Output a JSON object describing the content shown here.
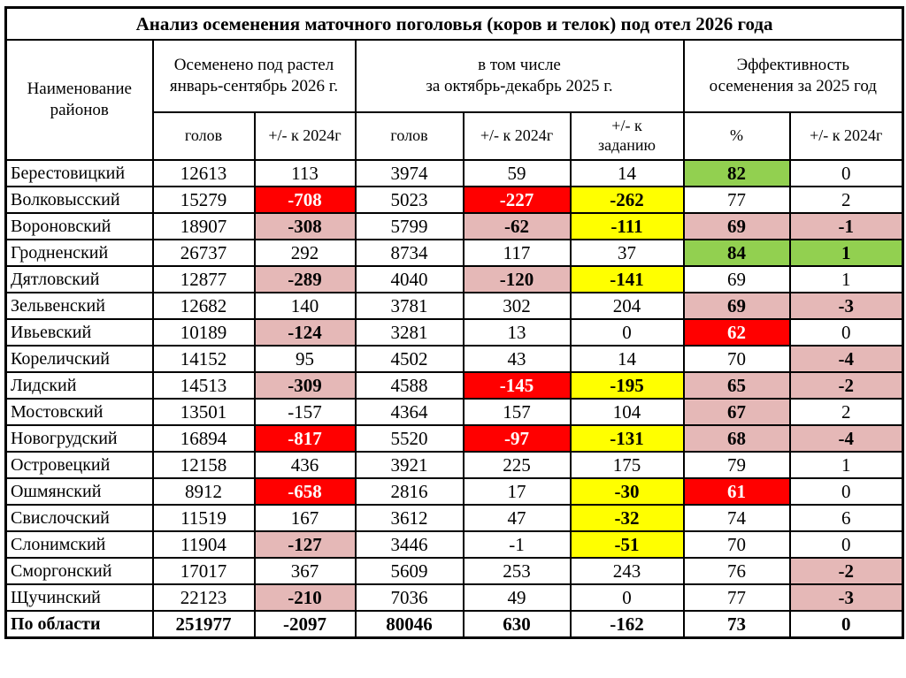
{
  "title": "Анализ осеменения маточного поголовья (коров и телок) под отел 2026 года",
  "header": {
    "districts_label": [
      "Наименование",
      "районов"
    ],
    "group1": [
      "Осеменено под растел",
      "январь-сентябрь 2026 г."
    ],
    "group2": [
      "в том числе",
      "за октябрь-декабрь 2025 г."
    ],
    "group3": [
      "Эффективность",
      "осеменения за 2025 год"
    ],
    "sub": [
      [
        "голов"
      ],
      [
        "+/- к 2024г"
      ],
      [
        "голов"
      ],
      [
        "+/- к 2024г"
      ],
      [
        "+/- к",
        "заданию"
      ],
      [
        "%"
      ],
      [
        "+/- к 2024г"
      ]
    ]
  },
  "colors": {
    "red": "#ff0000",
    "pink": "#e5b8b7",
    "yellow": "#ffff00",
    "green": "#92d050",
    "border": "#000000"
  },
  "chart_data": {
    "type": "table",
    "title": "Анализ осеменения маточного поголовья (коров и телок) под отел 2026 года",
    "columns": [
      "Наименование районов",
      "Осеменено под растел январь-сентябрь 2026 г. — голов",
      "Осеменено под растел январь-сентябрь 2026 г. — +/- к 2024г",
      "в том числе за октябрь-декабрь 2025 г. — голов",
      "в том числе за октябрь-декабрь 2025 г. — +/- к 2024г",
      "в том числе за октябрь-декабрь 2025 г. — +/- к заданию",
      "Эффективность осеменения за 2025 год — %",
      "Эффективность осеменения за 2025 год — +/- к 2024г"
    ]
  },
  "rows": [
    {
      "name": "Берестовицкий",
      "cells": [
        {
          "v": "12613"
        },
        {
          "v": "113"
        },
        {
          "v": "3974"
        },
        {
          "v": "59"
        },
        {
          "v": "14"
        },
        {
          "v": "82",
          "bg": "green"
        },
        {
          "v": "0"
        }
      ]
    },
    {
      "name": "Волковысский",
      "cells": [
        {
          "v": "15279"
        },
        {
          "v": "-708",
          "bg": "red"
        },
        {
          "v": "5023"
        },
        {
          "v": "-227",
          "bg": "red"
        },
        {
          "v": "-262",
          "bg": "yellow"
        },
        {
          "v": "77"
        },
        {
          "v": "2"
        }
      ]
    },
    {
      "name": "Вороновский",
      "cells": [
        {
          "v": "18907"
        },
        {
          "v": "-308",
          "bg": "pink"
        },
        {
          "v": "5799"
        },
        {
          "v": "-62",
          "bg": "pink"
        },
        {
          "v": "-111",
          "bg": "yellow"
        },
        {
          "v": "69",
          "bg": "pink"
        },
        {
          "v": "-1",
          "bg": "pink"
        }
      ]
    },
    {
      "name": "Гродненский",
      "cells": [
        {
          "v": "26737"
        },
        {
          "v": "292"
        },
        {
          "v": "8734"
        },
        {
          "v": "117"
        },
        {
          "v": "37"
        },
        {
          "v": "84",
          "bg": "green"
        },
        {
          "v": "1",
          "bg": "green"
        }
      ]
    },
    {
      "name": "Дятловский",
      "cells": [
        {
          "v": "12877"
        },
        {
          "v": "-289",
          "bg": "pink"
        },
        {
          "v": "4040"
        },
        {
          "v": "-120",
          "bg": "pink"
        },
        {
          "v": "-141",
          "bg": "yellow"
        },
        {
          "v": "69"
        },
        {
          "v": "1"
        }
      ]
    },
    {
      "name": "Зельвенский",
      "cells": [
        {
          "v": "12682"
        },
        {
          "v": "140"
        },
        {
          "v": "3781"
        },
        {
          "v": "302"
        },
        {
          "v": "204"
        },
        {
          "v": "69",
          "bg": "pink"
        },
        {
          "v": "-3",
          "bg": "pink"
        }
      ]
    },
    {
      "name": "Ивьевский",
      "cells": [
        {
          "v": "10189"
        },
        {
          "v": "-124",
          "bg": "pink"
        },
        {
          "v": "3281"
        },
        {
          "v": "13"
        },
        {
          "v": "0"
        },
        {
          "v": "62",
          "bg": "red"
        },
        {
          "v": "0"
        }
      ]
    },
    {
      "name": "Кореличский",
      "cells": [
        {
          "v": "14152"
        },
        {
          "v": "95"
        },
        {
          "v": "4502"
        },
        {
          "v": "43"
        },
        {
          "v": "14"
        },
        {
          "v": "70"
        },
        {
          "v": "-4",
          "bg": "pink"
        }
      ]
    },
    {
      "name": "Лидский",
      "cells": [
        {
          "v": "14513"
        },
        {
          "v": "-309",
          "bg": "pink"
        },
        {
          "v": "4588"
        },
        {
          "v": "-145",
          "bg": "red"
        },
        {
          "v": "-195",
          "bg": "yellow"
        },
        {
          "v": "65",
          "bg": "pink"
        },
        {
          "v": "-2",
          "bg": "pink"
        }
      ]
    },
    {
      "name": "Мостовский",
      "cells": [
        {
          "v": "13501"
        },
        {
          "v": "-157"
        },
        {
          "v": "4364"
        },
        {
          "v": "157"
        },
        {
          "v": "104"
        },
        {
          "v": "67",
          "bg": "pink"
        },
        {
          "v": "2"
        }
      ]
    },
    {
      "name": "Новогрудский",
      "cells": [
        {
          "v": "16894"
        },
        {
          "v": "-817",
          "bg": "red"
        },
        {
          "v": "5520"
        },
        {
          "v": "-97",
          "bg": "red"
        },
        {
          "v": "-131",
          "bg": "yellow"
        },
        {
          "v": "68",
          "bg": "pink"
        },
        {
          "v": "-4",
          "bg": "pink"
        }
      ]
    },
    {
      "name": "Островецкий",
      "cells": [
        {
          "v": "12158"
        },
        {
          "v": "436"
        },
        {
          "v": "3921"
        },
        {
          "v": "225"
        },
        {
          "v": "175"
        },
        {
          "v": "79"
        },
        {
          "v": "1"
        }
      ]
    },
    {
      "name": "Ошмянский",
      "cells": [
        {
          "v": "8912"
        },
        {
          "v": "-658",
          "bg": "red"
        },
        {
          "v": "2816"
        },
        {
          "v": "17"
        },
        {
          "v": "-30",
          "bg": "yellow"
        },
        {
          "v": "61",
          "bg": "red"
        },
        {
          "v": "0"
        }
      ]
    },
    {
      "name": "Свислочский",
      "cells": [
        {
          "v": "11519"
        },
        {
          "v": "167"
        },
        {
          "v": "3612"
        },
        {
          "v": "47"
        },
        {
          "v": "-32",
          "bg": "yellow"
        },
        {
          "v": "74"
        },
        {
          "v": "6"
        }
      ]
    },
    {
      "name": "Слонимский",
      "cells": [
        {
          "v": "11904"
        },
        {
          "v": "-127",
          "bg": "pink"
        },
        {
          "v": "3446"
        },
        {
          "v": "-1"
        },
        {
          "v": "-51",
          "bg": "yellow"
        },
        {
          "v": "70"
        },
        {
          "v": "0"
        }
      ]
    },
    {
      "name": "Сморгонский",
      "cells": [
        {
          "v": "17017"
        },
        {
          "v": "367"
        },
        {
          "v": "5609"
        },
        {
          "v": "253"
        },
        {
          "v": "243"
        },
        {
          "v": "76"
        },
        {
          "v": "-2",
          "bg": "pink"
        }
      ]
    },
    {
      "name": "Щучинский",
      "cells": [
        {
          "v": "22123"
        },
        {
          "v": "-210",
          "bg": "pink"
        },
        {
          "v": "7036"
        },
        {
          "v": "49"
        },
        {
          "v": "0"
        },
        {
          "v": "77"
        },
        {
          "v": "-3",
          "bg": "pink"
        }
      ]
    },
    {
      "name": "По области",
      "total": true,
      "cells": [
        {
          "v": "251977"
        },
        {
          "v": "-2097"
        },
        {
          "v": "80046"
        },
        {
          "v": "630"
        },
        {
          "v": "-162"
        },
        {
          "v": "73"
        },
        {
          "v": "0"
        }
      ]
    }
  ]
}
